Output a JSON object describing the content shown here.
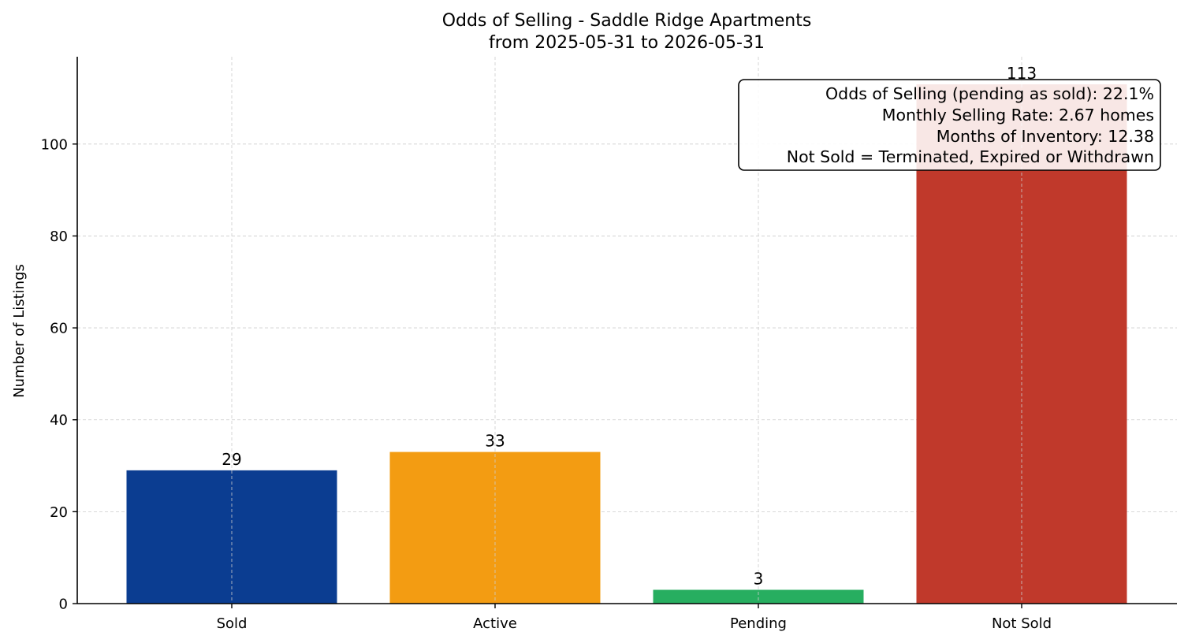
{
  "chart_data": {
    "type": "bar",
    "title": "Odds of Selling - Saddle Ridge Apartments",
    "subtitle": "from 2025-05-31 to 2026-05-31",
    "xlabel": "",
    "ylabel": "Number of Listings",
    "categories": [
      "Sold",
      "Active",
      "Pending",
      "Not Sold"
    ],
    "values": [
      29,
      33,
      3,
      113
    ],
    "colors": [
      "#0b3d91",
      "#f39c12",
      "#27ae60",
      "#c0392b"
    ],
    "ylim": [
      0,
      119
    ],
    "yticks": [
      0,
      20,
      40,
      60,
      80,
      100
    ],
    "grid": true,
    "annotation": {
      "placement": "top-right",
      "lines": [
        "Odds of Selling (pending as sold): 22.1%",
        "Monthly Selling Rate: 2.67 homes",
        "Months of Inventory: 12.38",
        "Not Sold = Terminated, Expired or Withdrawn"
      ]
    }
  }
}
